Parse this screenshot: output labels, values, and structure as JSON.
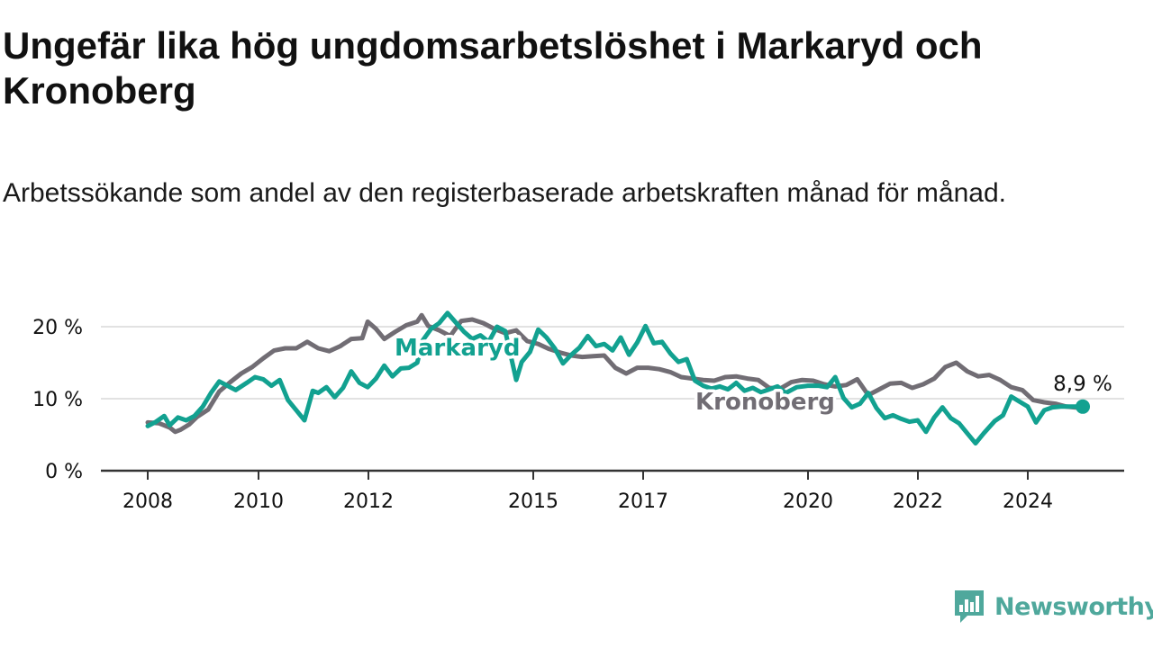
{
  "title": "Ungefär lika hög ungdomsarbetslöshet i Markaryd och Kronoberg",
  "subtitle": "Arbetssökande som andel av den registerbaserade arbetskraften månad för månad.",
  "brand": {
    "name": "Newsworthy",
    "icon": "newsworthy-logo-icon"
  },
  "colors": {
    "markaryd": "#12a190",
    "kronoberg": "#716d74",
    "grid": "#d9d9d9",
    "axis": "#333333",
    "text": "#111111"
  },
  "chart_data": {
    "type": "line",
    "x_format": "decimal-year",
    "x_ticks": [
      {
        "value": 2008,
        "label": "2008"
      },
      {
        "value": 2010,
        "label": "2010"
      },
      {
        "value": 2012,
        "label": "2012"
      },
      {
        "value": 2015,
        "label": "2015"
      },
      {
        "value": 2017,
        "label": "2017"
      },
      {
        "value": 2020,
        "label": "2020"
      },
      {
        "value": 2022,
        "label": "2022"
      },
      {
        "value": 2024,
        "label": "2024"
      }
    ],
    "y_ticks": [
      {
        "value": 0,
        "label": "0 %"
      },
      {
        "value": 10,
        "label": "10 %"
      },
      {
        "value": 20,
        "label": "20 %"
      }
    ],
    "ylim": [
      0,
      22.8
    ],
    "xlim": [
      2007.2,
      2025.0
    ],
    "grid": true,
    "end_label": "8,9 %",
    "series": [
      {
        "name": "Kronoberg",
        "color": "#716d74",
        "points": [
          [
            2008.0,
            6.7
          ],
          [
            2008.2,
            6.6
          ],
          [
            2008.4,
            6.0
          ],
          [
            2008.5,
            5.4
          ],
          [
            2008.6,
            5.7
          ],
          [
            2008.75,
            6.4
          ],
          [
            2008.9,
            7.5
          ],
          [
            2009.1,
            8.5
          ],
          [
            2009.3,
            11.0
          ],
          [
            2009.5,
            12.3
          ],
          [
            2009.7,
            13.5
          ],
          [
            2009.9,
            14.4
          ],
          [
            2010.1,
            15.6
          ],
          [
            2010.3,
            16.7
          ],
          [
            2010.5,
            17.0
          ],
          [
            2010.7,
            17.0
          ],
          [
            2010.9,
            17.9
          ],
          [
            2011.1,
            17.0
          ],
          [
            2011.3,
            16.6
          ],
          [
            2011.5,
            17.3
          ],
          [
            2011.7,
            18.3
          ],
          [
            2011.9,
            18.4
          ],
          [
            2012.0,
            20.7
          ],
          [
            2012.15,
            19.7
          ],
          [
            2012.3,
            18.3
          ],
          [
            2012.5,
            19.3
          ],
          [
            2012.7,
            20.2
          ],
          [
            2012.9,
            20.7
          ],
          [
            2012.98,
            21.6
          ],
          [
            2013.1,
            20.1
          ],
          [
            2013.3,
            19.5
          ],
          [
            2013.5,
            18.7
          ],
          [
            2013.7,
            20.8
          ],
          [
            2013.9,
            21.0
          ],
          [
            2014.1,
            20.5
          ],
          [
            2014.3,
            19.7
          ],
          [
            2014.5,
            19.1
          ],
          [
            2014.7,
            19.5
          ],
          [
            2014.9,
            18.0
          ],
          [
            2015.1,
            17.6
          ],
          [
            2015.3,
            16.9
          ],
          [
            2015.5,
            16.4
          ],
          [
            2015.7,
            16.0
          ],
          [
            2015.9,
            15.8
          ],
          [
            2016.1,
            15.9
          ],
          [
            2016.3,
            16.0
          ],
          [
            2016.5,
            14.3
          ],
          [
            2016.7,
            13.5
          ],
          [
            2016.9,
            14.3
          ],
          [
            2017.1,
            14.3
          ],
          [
            2017.3,
            14.1
          ],
          [
            2017.5,
            13.7
          ],
          [
            2017.7,
            13.0
          ],
          [
            2017.9,
            12.8
          ],
          [
            2018.1,
            12.6
          ],
          [
            2018.3,
            12.5
          ],
          [
            2018.5,
            13.0
          ],
          [
            2018.7,
            13.1
          ],
          [
            2018.9,
            12.8
          ],
          [
            2019.1,
            12.6
          ],
          [
            2019.3,
            11.5
          ],
          [
            2019.5,
            11.4
          ],
          [
            2019.7,
            12.3
          ],
          [
            2019.9,
            12.6
          ],
          [
            2020.1,
            12.5
          ],
          [
            2020.3,
            12.0
          ],
          [
            2020.5,
            11.7
          ],
          [
            2020.7,
            11.9
          ],
          [
            2020.9,
            12.7
          ],
          [
            2021.1,
            10.5
          ],
          [
            2021.3,
            11.3
          ],
          [
            2021.5,
            12.1
          ],
          [
            2021.7,
            12.2
          ],
          [
            2021.9,
            11.5
          ],
          [
            2022.1,
            12.0
          ],
          [
            2022.3,
            12.8
          ],
          [
            2022.5,
            14.4
          ],
          [
            2022.7,
            15.0
          ],
          [
            2022.9,
            13.8
          ],
          [
            2023.1,
            13.1
          ],
          [
            2023.3,
            13.3
          ],
          [
            2023.5,
            12.6
          ],
          [
            2023.7,
            11.6
          ],
          [
            2023.9,
            11.2
          ],
          [
            2024.1,
            9.8
          ],
          [
            2024.3,
            9.5
          ],
          [
            2024.5,
            9.3
          ],
          [
            2024.7,
            8.9
          ],
          [
            2024.85,
            8.8
          ],
          [
            2025.0,
            8.7
          ]
        ]
      },
      {
        "name": "Markaryd",
        "color": "#12a190",
        "points": [
          [
            2008.0,
            6.2
          ],
          [
            2008.15,
            6.8
          ],
          [
            2008.3,
            7.6
          ],
          [
            2008.4,
            6.3
          ],
          [
            2008.55,
            7.4
          ],
          [
            2008.7,
            7.0
          ],
          [
            2008.85,
            7.6
          ],
          [
            2009.0,
            8.9
          ],
          [
            2009.15,
            10.8
          ],
          [
            2009.3,
            12.4
          ],
          [
            2009.45,
            11.8
          ],
          [
            2009.6,
            11.2
          ],
          [
            2009.8,
            12.2
          ],
          [
            2009.95,
            13.0
          ],
          [
            2010.1,
            12.7
          ],
          [
            2010.25,
            11.8
          ],
          [
            2010.4,
            12.6
          ],
          [
            2010.55,
            9.8
          ],
          [
            2010.7,
            8.4
          ],
          [
            2010.85,
            7.0
          ],
          [
            2011.0,
            11.1
          ],
          [
            2011.1,
            10.8
          ],
          [
            2011.25,
            11.6
          ],
          [
            2011.4,
            10.2
          ],
          [
            2011.55,
            11.5
          ],
          [
            2011.7,
            13.8
          ],
          [
            2011.85,
            12.2
          ],
          [
            2012.0,
            11.6
          ],
          [
            2012.15,
            12.8
          ],
          [
            2012.3,
            14.6
          ],
          [
            2012.45,
            13.1
          ],
          [
            2012.6,
            14.2
          ],
          [
            2012.75,
            14.3
          ],
          [
            2012.9,
            15.0
          ],
          [
            2013.0,
            18.1
          ],
          [
            2013.15,
            19.7
          ],
          [
            2013.3,
            20.5
          ],
          [
            2013.45,
            21.9
          ],
          [
            2013.6,
            20.6
          ],
          [
            2013.75,
            19.3
          ],
          [
            2013.9,
            18.3
          ],
          [
            2014.05,
            18.8
          ],
          [
            2014.2,
            17.9
          ],
          [
            2014.35,
            20.0
          ],
          [
            2014.5,
            19.4
          ],
          [
            2014.7,
            12.6
          ],
          [
            2014.8,
            15.1
          ],
          [
            2014.95,
            16.5
          ],
          [
            2015.1,
            19.6
          ],
          [
            2015.25,
            18.5
          ],
          [
            2015.4,
            17.0
          ],
          [
            2015.55,
            14.9
          ],
          [
            2015.7,
            16.1
          ],
          [
            2015.85,
            17.1
          ],
          [
            2016.0,
            18.7
          ],
          [
            2016.15,
            17.3
          ],
          [
            2016.3,
            17.6
          ],
          [
            2016.45,
            16.7
          ],
          [
            2016.6,
            18.5
          ],
          [
            2016.75,
            16.1
          ],
          [
            2016.9,
            17.8
          ],
          [
            2017.05,
            20.1
          ],
          [
            2017.2,
            17.7
          ],
          [
            2017.35,
            17.9
          ],
          [
            2017.5,
            16.3
          ],
          [
            2017.65,
            15.1
          ],
          [
            2017.8,
            15.5
          ],
          [
            2017.95,
            12.5
          ],
          [
            2018.1,
            11.8
          ],
          [
            2018.25,
            11.4
          ],
          [
            2018.4,
            11.7
          ],
          [
            2018.55,
            11.3
          ],
          [
            2018.7,
            12.2
          ],
          [
            2018.85,
            11.1
          ],
          [
            2019.0,
            11.5
          ],
          [
            2019.15,
            10.9
          ],
          [
            2019.3,
            11.3
          ],
          [
            2019.45,
            11.7
          ],
          [
            2019.6,
            10.8
          ],
          [
            2019.8,
            11.6
          ],
          [
            2020.0,
            11.8
          ],
          [
            2020.2,
            11.8
          ],
          [
            2020.35,
            11.6
          ],
          [
            2020.5,
            13.0
          ],
          [
            2020.65,
            10.1
          ],
          [
            2020.8,
            8.8
          ],
          [
            2020.95,
            9.3
          ],
          [
            2021.1,
            10.8
          ],
          [
            2021.25,
            8.7
          ],
          [
            2021.4,
            7.3
          ],
          [
            2021.55,
            7.7
          ],
          [
            2021.7,
            7.2
          ],
          [
            2021.85,
            6.8
          ],
          [
            2022.0,
            7.0
          ],
          [
            2022.15,
            5.4
          ],
          [
            2022.3,
            7.4
          ],
          [
            2022.45,
            8.8
          ],
          [
            2022.6,
            7.3
          ],
          [
            2022.75,
            6.6
          ],
          [
            2022.9,
            5.2
          ],
          [
            2023.05,
            3.8
          ],
          [
            2023.2,
            5.2
          ],
          [
            2023.4,
            6.9
          ],
          [
            2023.55,
            7.7
          ],
          [
            2023.7,
            10.3
          ],
          [
            2023.85,
            9.6
          ],
          [
            2024.0,
            8.9
          ],
          [
            2024.15,
            6.7
          ],
          [
            2024.3,
            8.4
          ],
          [
            2024.45,
            8.8
          ],
          [
            2024.6,
            8.9
          ],
          [
            2024.75,
            8.9
          ],
          [
            2024.9,
            8.9
          ],
          [
            2025.0,
            8.9
          ]
        ]
      }
    ],
    "series_labels": [
      {
        "series": "Markaryd",
        "text": "Markaryd"
      },
      {
        "series": "Kronoberg",
        "text": "Kronoberg"
      }
    ]
  }
}
